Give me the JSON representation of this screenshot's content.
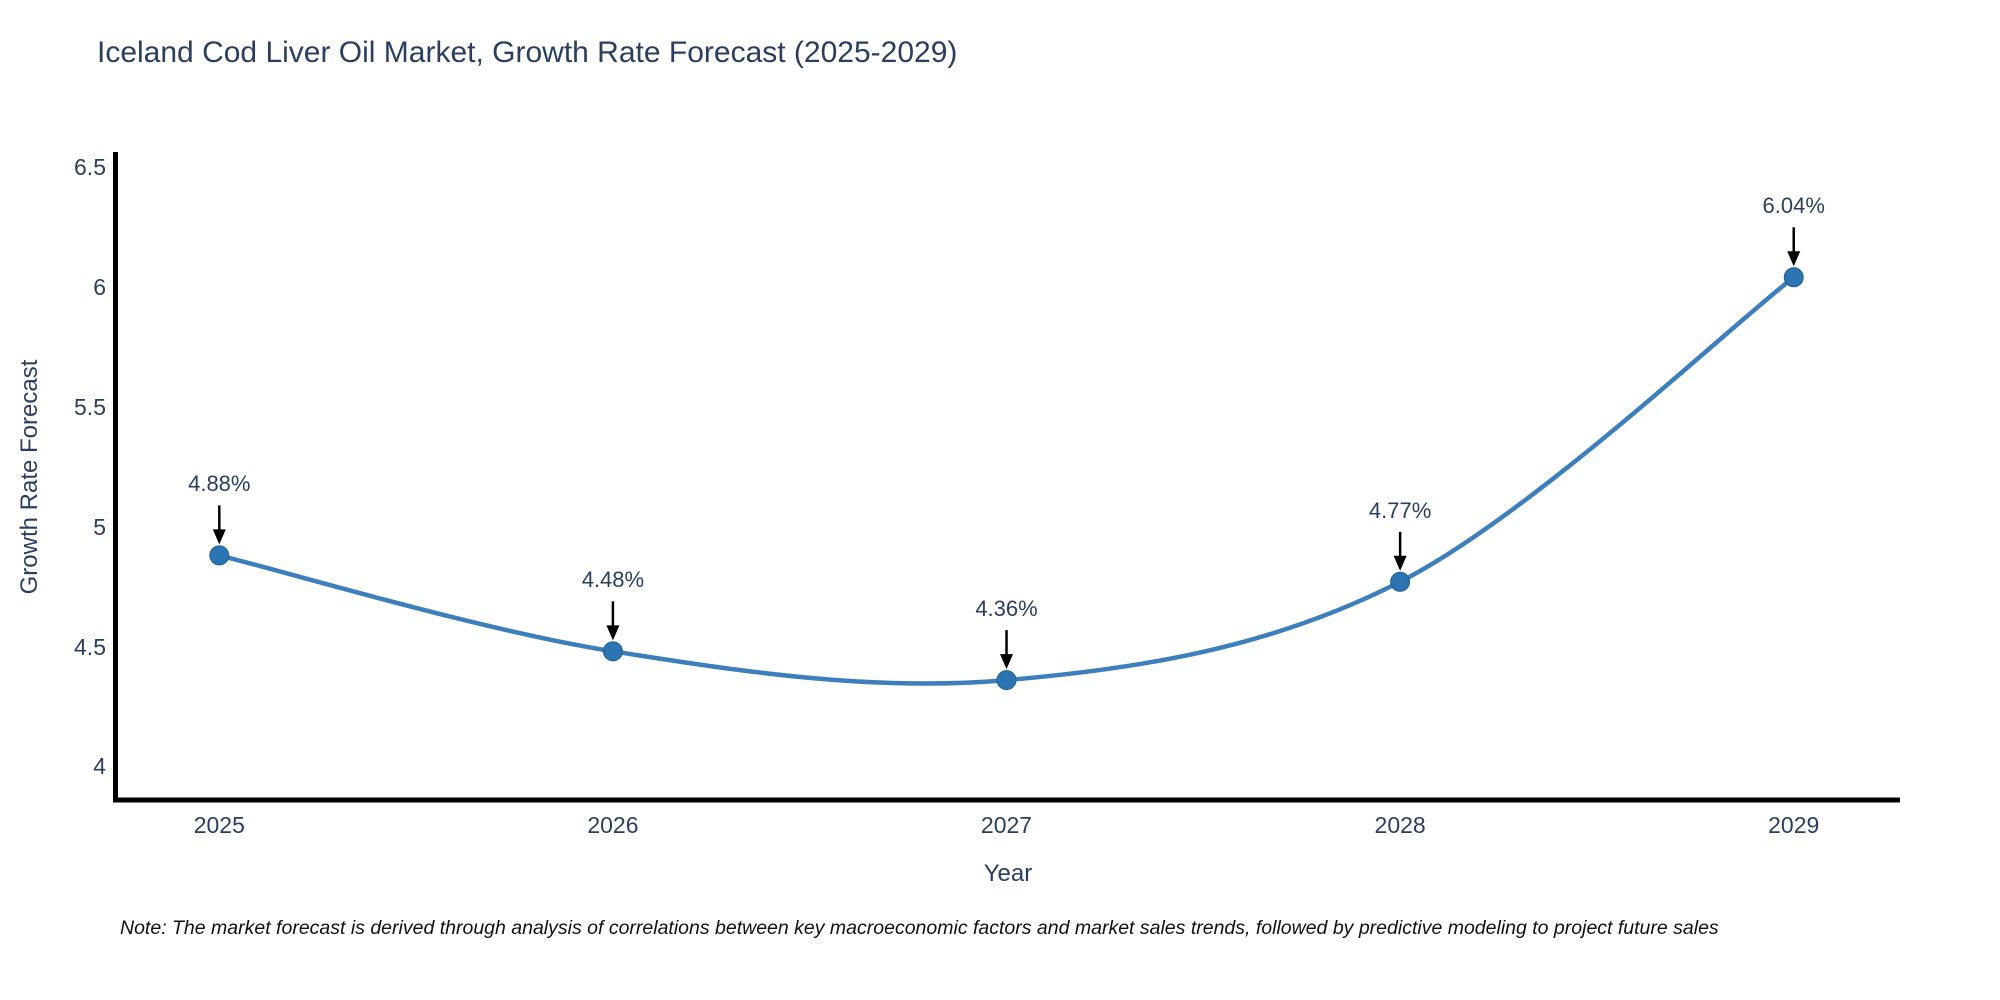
{
  "title": "Iceland Cod Liver Oil Market, Growth Rate Forecast (2025-2029)",
  "note": "Note: The market forecast is derived through analysis of correlations between key macroeconomic factors and market sales trends, followed by predictive modeling to project future sales",
  "chart_data": {
    "type": "line",
    "title": "Iceland Cod Liver Oil Market, Growth Rate Forecast (2025-2029)",
    "categories": [
      "2025",
      "2026",
      "2027",
      "2028",
      "2029"
    ],
    "x": [
      2025,
      2026,
      2027,
      2028,
      2029
    ],
    "series": [
      {
        "name": "Growth Rate Forecast",
        "values": [
          4.88,
          4.48,
          4.36,
          4.77,
          6.04
        ]
      }
    ],
    "point_labels": [
      "4.88%",
      "4.48%",
      "4.36%",
      "4.77%",
      "6.04%"
    ],
    "xlabel": "Year",
    "ylabel": "Growth Rate Forecast",
    "ytick_values": [
      4,
      4.5,
      5,
      5.5,
      6,
      6.5
    ],
    "ytick_labels": [
      "4",
      "4.5",
      "5",
      "5.5",
      "6",
      "6.5"
    ],
    "xlim": [
      2024.735,
      2029.27
    ],
    "ylim": [
      3.86,
      6.55
    ],
    "line_shape": "spline",
    "grid": false,
    "legend": "none",
    "annotation_arrows": true,
    "colors": {
      "line": "#3d7ebc",
      "marker": "#2d74b2",
      "marker_edge": "#1f5f96",
      "arrow": "#000000",
      "axis_spine": "#000000",
      "text": "#2a3f5f",
      "note_text": "#111111",
      "background": "#ffffff"
    }
  }
}
